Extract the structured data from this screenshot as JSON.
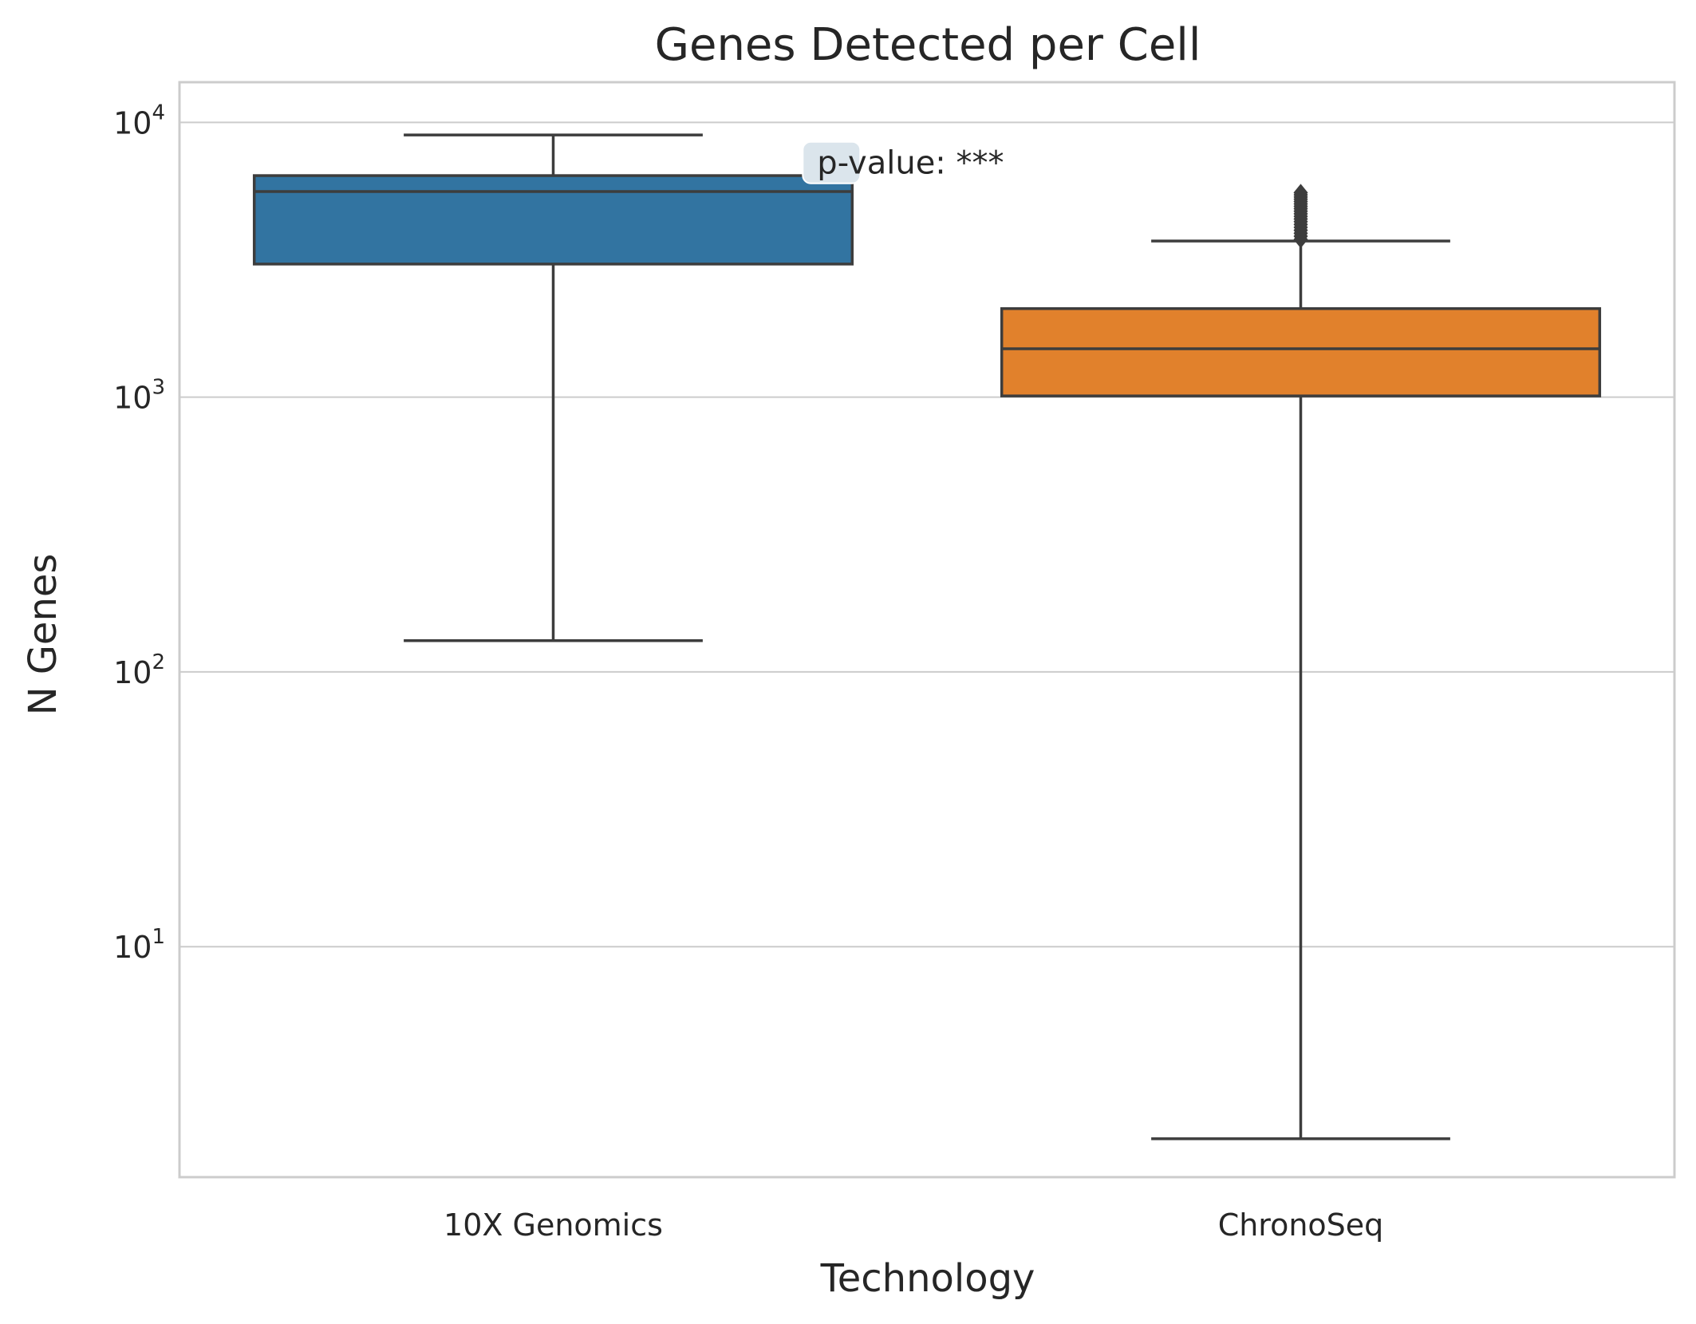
{
  "chart_data": {
    "type": "box",
    "title": "Genes Detected per Cell",
    "xlabel": "Technology",
    "ylabel": "N Genes",
    "yscale": "log",
    "ylim": [
      1.45,
      14000
    ],
    "yticks": [
      {
        "value": 10,
        "base": "10",
        "exp": "1"
      },
      {
        "value": 100,
        "base": "10",
        "exp": "2"
      },
      {
        "value": 1000,
        "base": "10",
        "exp": "3"
      },
      {
        "value": 10000,
        "base": "10",
        "exp": "4"
      }
    ],
    "grid": true,
    "categories": [
      "10X Genomics",
      "ChronoSeq"
    ],
    "boxes": [
      {
        "category": "10X Genomics",
        "color": "#3274a1",
        "whisker_low": 130,
        "q1": 3050,
        "median": 5600,
        "q3": 6400,
        "whisker_high": 9000,
        "outliers": []
      },
      {
        "category": "ChronoSeq",
        "color": "#e1812c",
        "whisker_low": 2,
        "q1": 1010,
        "median": 1500,
        "q3": 2100,
        "whisker_high": 3700,
        "outliers": [
          3750,
          3850,
          3950,
          4050,
          4150,
          4250,
          4350,
          4450,
          4550,
          4650,
          4750,
          4850,
          4950,
          5050,
          5150,
          5250,
          5350,
          5450,
          5550
        ]
      }
    ],
    "annotation": {
      "text": "p-value: ***",
      "value": 6500
    }
  },
  "colors": {
    "grid": "#cccccc",
    "frame": "#cccccc",
    "box_edge": "#3d3d3d",
    "text": "#262626"
  }
}
